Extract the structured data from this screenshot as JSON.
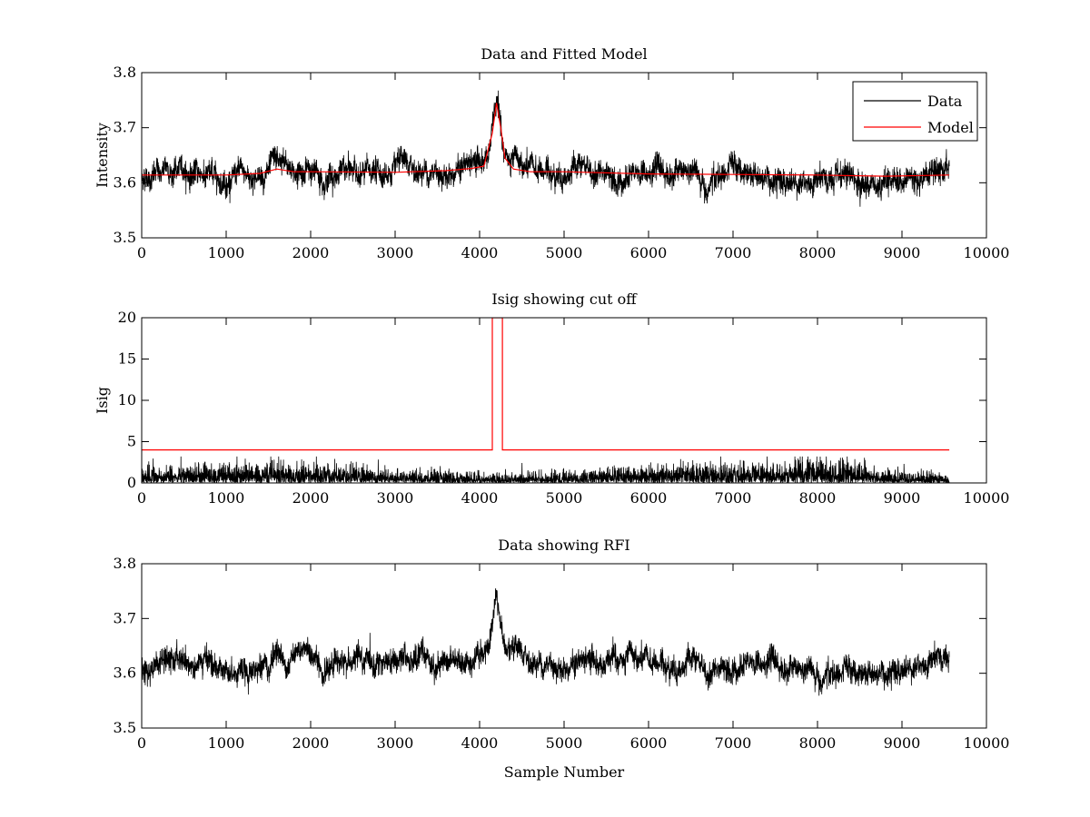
{
  "chart_data": [
    {
      "type": "line",
      "title": "Data and Fitted Model",
      "xlabel": "",
      "ylabel": "Intensity",
      "xlim": [
        0,
        10000
      ],
      "ylim": [
        3.5,
        3.8
      ],
      "x_ticks": [
        0,
        1000,
        2000,
        3000,
        4000,
        5000,
        6000,
        7000,
        8000,
        9000,
        10000
      ],
      "x_tick_labels": [
        "0",
        "1000",
        "2000",
        "3000",
        "4000",
        "5000",
        "6000",
        "7000",
        "8000",
        "9000",
        "10000"
      ],
      "y_ticks": [
        3.5,
        3.6,
        3.7,
        3.8
      ],
      "y_tick_labels": [
        "3.5",
        "3.6",
        "3.7",
        "3.8"
      ],
      "legend": {
        "position": "top-right",
        "entries": [
          "Data",
          "Model"
        ]
      },
      "series": [
        {
          "name": "Data",
          "color": "#000000",
          "style": "noisy",
          "noise": 0.012,
          "x": [
            0,
            300,
            600,
            1000,
            1300,
            1600,
            2000,
            2500,
            3000,
            3500,
            3800,
            4000,
            4100,
            4150,
            4200,
            4250,
            4300,
            4400,
            4600,
            5000,
            5500,
            6000,
            6500,
            6700,
            7000,
            7500,
            7800,
            8200,
            8500,
            9000,
            9560
          ],
          "y": [
            3.612,
            3.622,
            3.618,
            3.612,
            3.61,
            3.625,
            3.62,
            3.619,
            3.617,
            3.622,
            3.63,
            3.632,
            3.655,
            3.7,
            3.74,
            3.69,
            3.645,
            3.625,
            3.618,
            3.62,
            3.618,
            3.615,
            3.617,
            3.598,
            3.622,
            3.612,
            3.602,
            3.595,
            3.6,
            3.612,
            3.62
          ]
        },
        {
          "name": "Model",
          "color": "#ff0000",
          "style": "line",
          "x": [
            0,
            1000,
            1400,
            1600,
            1800,
            2000,
            3000,
            3600,
            3900,
            4050,
            4150,
            4200,
            4250,
            4300,
            4400,
            4600,
            5000,
            6000,
            7000,
            8000,
            8800,
            9560
          ],
          "y": [
            3.614,
            3.614,
            3.617,
            3.625,
            3.62,
            3.62,
            3.619,
            3.622,
            3.626,
            3.63,
            3.69,
            3.745,
            3.7,
            3.645,
            3.625,
            3.62,
            3.62,
            3.616,
            3.615,
            3.614,
            3.612,
            3.614
          ]
        }
      ]
    },
    {
      "type": "line",
      "title": "Isig showing cut off",
      "xlabel": "",
      "ylabel": "Isig",
      "xlim": [
        0,
        10000
      ],
      "ylim": [
        0,
        20
      ],
      "x_ticks": [
        0,
        1000,
        2000,
        3000,
        4000,
        5000,
        6000,
        7000,
        8000,
        9000,
        10000
      ],
      "x_tick_labels": [
        "0",
        "1000",
        "2000",
        "3000",
        "4000",
        "5000",
        "6000",
        "7000",
        "8000",
        "9000",
        "10000"
      ],
      "y_ticks": [
        0,
        5,
        10,
        15,
        20
      ],
      "y_tick_labels": [
        "0",
        "5",
        "10",
        "15",
        "20"
      ],
      "series": [
        {
          "name": "Isig",
          "color": "#000000",
          "style": "spiky",
          "x": [
            0,
            9560
          ],
          "y": [
            0,
            0
          ],
          "peak": 3.2
        },
        {
          "name": "Cut off",
          "color": "#ff0000",
          "style": "line",
          "x": [
            0,
            4150,
            4150,
            4270,
            4270,
            9560
          ],
          "y": [
            4,
            4,
            20,
            20,
            4,
            4
          ]
        }
      ]
    },
    {
      "type": "line",
      "title": "Data showing RFI",
      "xlabel": "Sample Number",
      "ylabel": "",
      "xlim": [
        0,
        10000
      ],
      "ylim": [
        3.5,
        3.8
      ],
      "x_ticks": [
        0,
        1000,
        2000,
        3000,
        4000,
        5000,
        6000,
        7000,
        8000,
        9000,
        10000
      ],
      "x_tick_labels": [
        "0",
        "1000",
        "2000",
        "3000",
        "4000",
        "5000",
        "6000",
        "7000",
        "8000",
        "9000",
        "10000"
      ],
      "y_ticks": [
        3.5,
        3.6,
        3.7,
        3.8
      ],
      "y_tick_labels": [
        "3.5",
        "3.6",
        "3.7",
        "3.8"
      ],
      "series": [
        {
          "name": "Data",
          "color": "#000000",
          "style": "noisy",
          "noise": 0.012,
          "x": [
            0,
            300,
            600,
            1000,
            1300,
            1600,
            2000,
            2500,
            3000,
            3500,
            3800,
            4000,
            4100,
            4150,
            4200,
            4250,
            4300,
            4400,
            4600,
            5000,
            5500,
            6000,
            6500,
            6700,
            7000,
            7500,
            7800,
            8200,
            8500,
            9000,
            9560
          ],
          "y": [
            3.612,
            3.622,
            3.618,
            3.612,
            3.61,
            3.625,
            3.62,
            3.619,
            3.617,
            3.622,
            3.63,
            3.632,
            3.655,
            3.7,
            3.74,
            3.69,
            3.645,
            3.625,
            3.618,
            3.62,
            3.618,
            3.615,
            3.617,
            3.598,
            3.622,
            3.612,
            3.602,
            3.595,
            3.6,
            3.612,
            3.62
          ]
        }
      ]
    }
  ]
}
